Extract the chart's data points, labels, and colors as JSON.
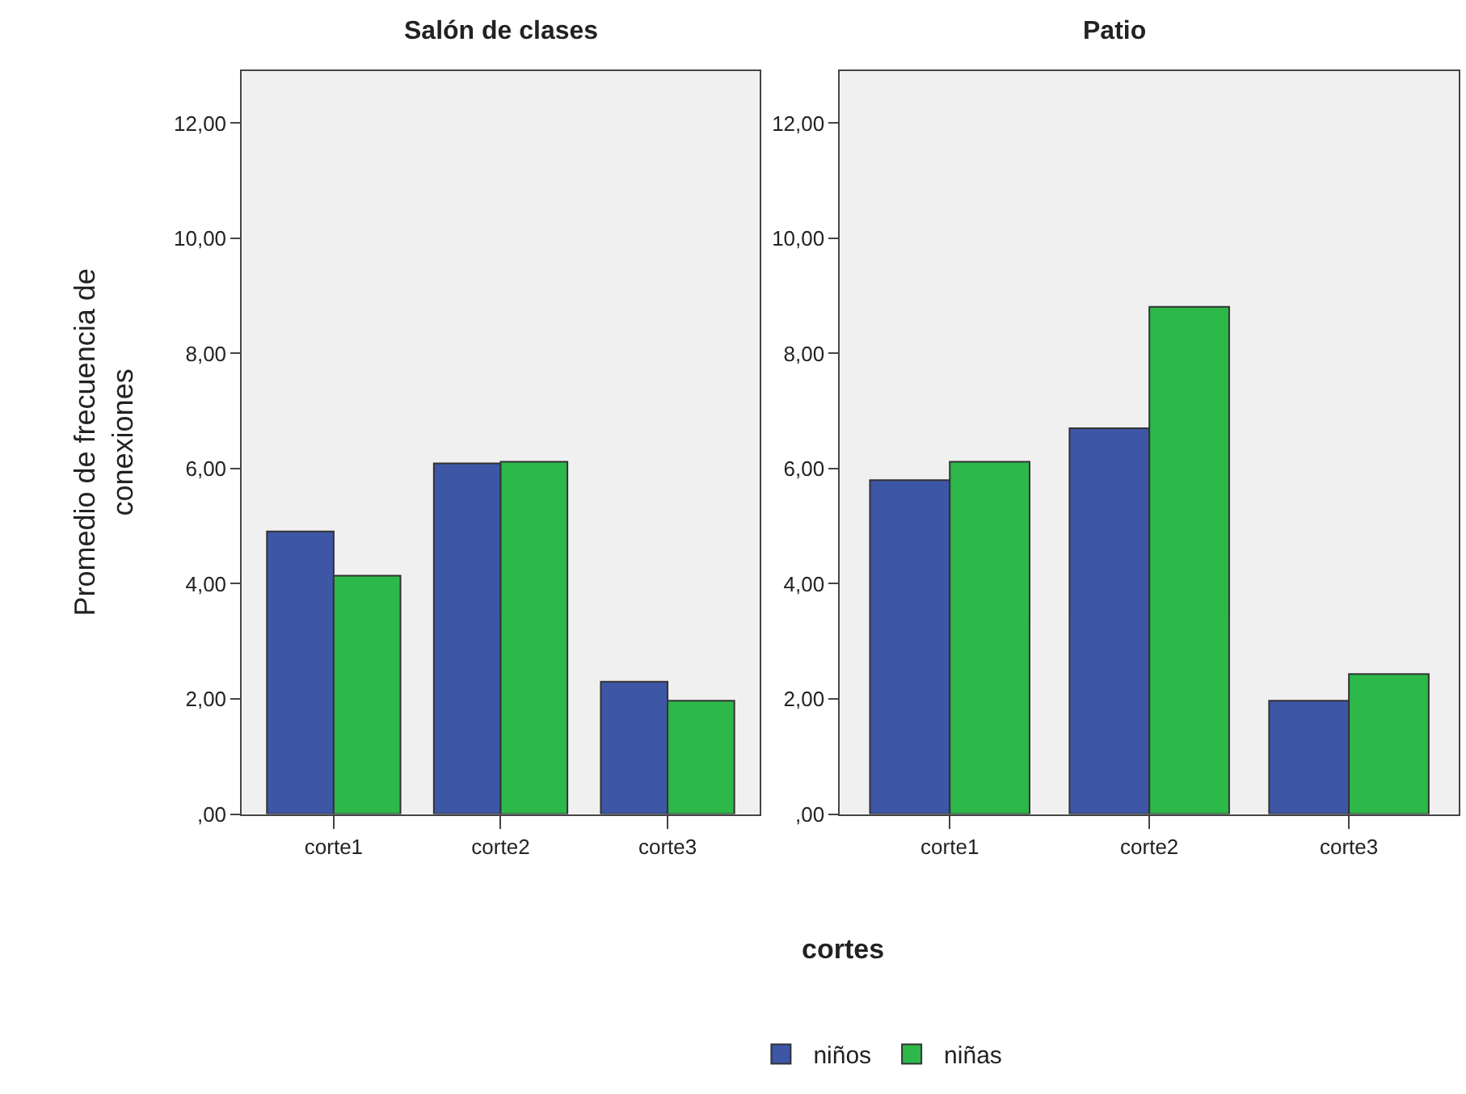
{
  "chart_data": [
    {
      "type": "bar",
      "title": "Salón de clases",
      "ylabel": "Promedio de frecuencia de conexiones",
      "xlabel": "cortes",
      "categories": [
        "corte1",
        "corte2",
        "corte3"
      ],
      "series": [
        {
          "name": "niños",
          "color": "#3d56a6",
          "values": [
            4.91,
            6.09,
            2.3
          ]
        },
        {
          "name": "niñas",
          "color": "#2db84a",
          "values": [
            4.14,
            6.12,
            1.97
          ]
        }
      ],
      "ylim": [
        0,
        12.9
      ],
      "yticks": [
        {
          "value": 0,
          "label": ",00"
        },
        {
          "value": 2,
          "label": "2,00"
        },
        {
          "value": 4,
          "label": "4,00"
        },
        {
          "value": 6,
          "label": "6,00"
        },
        {
          "value": 8,
          "label": "8,00"
        },
        {
          "value": 10,
          "label": "10,00"
        },
        {
          "value": 12,
          "label": "12,00"
        }
      ],
      "grid": false,
      "legend": "bottom"
    },
    {
      "type": "bar",
      "title": "Patio",
      "categories": [
        "corte1",
        "corte2",
        "corte3"
      ],
      "series": [
        {
          "color": "#3d56a6",
          "values": [
            5.8,
            6.7,
            1.97
          ]
        },
        {
          "color": "#2db84a",
          "values": [
            6.12,
            8.81,
            2.43
          ]
        }
      ],
      "ylim": [
        0,
        12.9
      ],
      "yticks": [
        {
          "value": 0,
          "label": ",00"
        },
        {
          "value": 2,
          "label": "2,00"
        },
        {
          "value": 4,
          "label": "4,00"
        },
        {
          "value": 6,
          "label": "6,00"
        },
        {
          "value": 8,
          "label": "8,00"
        },
        {
          "value": 10,
          "label": "10,00"
        },
        {
          "value": 12,
          "label": "12,00"
        }
      ],
      "grid": false
    }
  ]
}
